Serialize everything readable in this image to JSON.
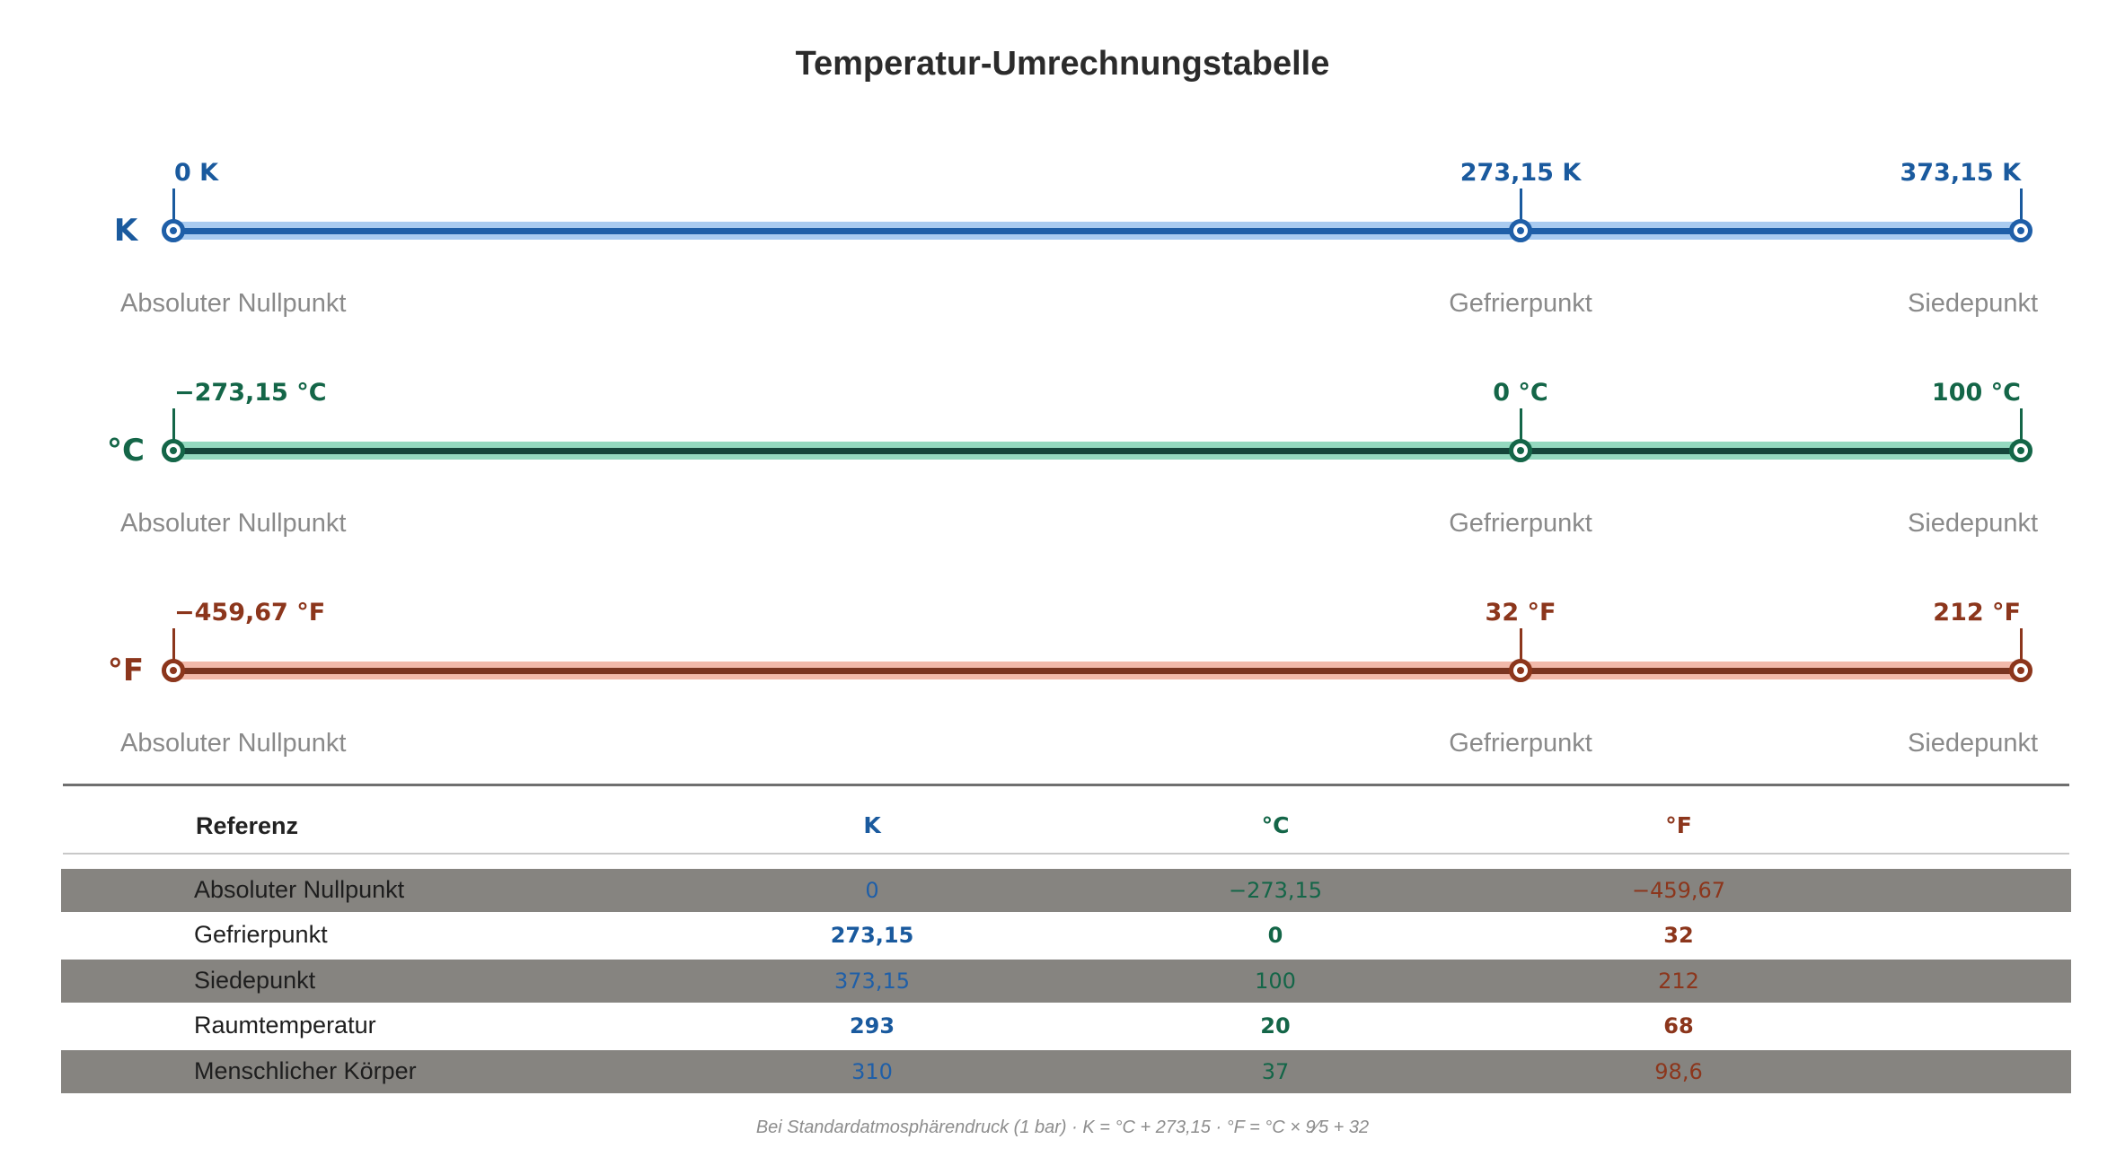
{
  "title": "Temperatur-Umrechnungstabelle",
  "colors": {
    "kelvin": "#1a5a9e",
    "kelvin_band": "#a9cbf0",
    "kelvin_line": "#1f5fa8",
    "celsius": "#146648",
    "celsius_band": "#94d9bf",
    "celsius_line": "#15453a",
    "fahrenheit": "#8c361c",
    "fahrenheit_band": "#f2b9aa",
    "fahrenheit_line": "#7a3420"
  },
  "scales": [
    {
      "unit": "K",
      "points": [
        {
          "value": "0 K",
          "reference": "Absoluter Nullpunkt"
        },
        {
          "value": "273,15 K",
          "reference": "Gefrierpunkt"
        },
        {
          "value": "373,15 K",
          "reference": "Siedepunkt"
        }
      ]
    },
    {
      "unit": "°C",
      "points": [
        {
          "value": "−273,15 °C",
          "reference": "Absoluter Nullpunkt"
        },
        {
          "value": "0 °C",
          "reference": "Gefrierpunkt"
        },
        {
          "value": "100 °C",
          "reference": "Siedepunkt"
        }
      ]
    },
    {
      "unit": "°F",
      "points": [
        {
          "value": "−459,67 °F",
          "reference": "Absoluter Nullpunkt"
        },
        {
          "value": "32 °F",
          "reference": "Gefrierpunkt"
        },
        {
          "value": "212 °F",
          "reference": "Siedepunkt"
        }
      ]
    }
  ],
  "table": {
    "headers": [
      "Referenz",
      "K",
      "°C",
      "°F"
    ],
    "rows": [
      {
        "name": "Absoluter Nullpunkt",
        "k": "0",
        "c": "−273,15",
        "f": "−459,67"
      },
      {
        "name": "Gefrierpunkt",
        "k": "273,15",
        "c": "0",
        "f": "32"
      },
      {
        "name": "Siedepunkt",
        "k": "373,15",
        "c": "100",
        "f": "212"
      },
      {
        "name": "Raumtemperatur",
        "k": "293",
        "c": "20",
        "f": "68"
      },
      {
        "name": "Menschlicher Körper",
        "k": "310",
        "c": "37",
        "f": "98,6"
      }
    ]
  },
  "footnote": "Bei Standardatmosphärendruck (1 bar)  ·  K = °C + 273,15  ·  °F = °C × 9⁄5 + 32"
}
